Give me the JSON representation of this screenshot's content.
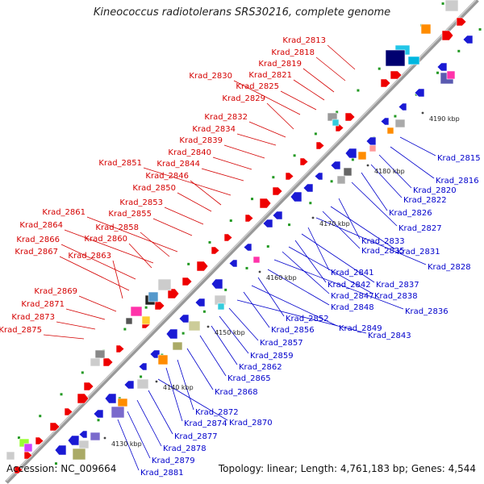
{
  "title": "Kineococcus radiotolerans SRS30216, complete genome",
  "footer": {
    "accession": "Accession: NC_009664",
    "summary": "Topology: linear; Length: 4,761,183 bp; Genes: 4,544"
  },
  "colors": {
    "forward_label": "#d40000",
    "reverse_label": "#0000cc",
    "forward_gene": "#ee0000",
    "reverse_gene": "#1a1ad4",
    "axis": "#999999",
    "tick_green": "#229922"
  },
  "axis_ticks": [
    {
      "label": "4130 kbp"
    },
    {
      "label": "4140 kbp"
    },
    {
      "label": "4150 kbp"
    },
    {
      "label": "4160 kbp"
    },
    {
      "label": "4170 kbp"
    },
    {
      "label": "4180 kbp"
    },
    {
      "label": "4190 kbp"
    }
  ],
  "forward_labels": [
    "Krad_2813",
    "Krad_2818",
    "Krad_2819",
    "Krad_2821",
    "Krad_2825",
    "Krad_2830",
    "Krad_2829",
    "Krad_2832",
    "Krad_2834",
    "Krad_2839",
    "Krad_2840",
    "Krad_2844",
    "Krad_2851",
    "Krad_2846",
    "Krad_2850",
    "Krad_2853",
    "Krad_2855",
    "Krad_2861",
    "Krad_2858",
    "Krad_2864",
    "Krad_2860",
    "Krad_2866",
    "Krad_2867",
    "Krad_2863",
    "Krad_2869",
    "Krad_2871",
    "Krad_2873",
    "Krad_2875"
  ],
  "reverse_labels": [
    "Krad_2815",
    "Krad_2816",
    "Krad_2820",
    "Krad_2822",
    "Krad_2826",
    "Krad_2827",
    "Krad_2833",
    "Krad_2831",
    "Krad_2835",
    "Krad_2828",
    "Krad_2841",
    "Krad_2837",
    "Krad_2842",
    "Krad_2838",
    "Krad_2847",
    "Krad_2836",
    "Krad_2848",
    "Krad_2852",
    "Krad_2849",
    "Krad_2856",
    "Krad_2843",
    "Krad_2857",
    "Krad_2859",
    "Krad_2862",
    "Krad_2865",
    "Krad_2868",
    "Krad_2872",
    "Krad_2874",
    "Krad_2870",
    "Krad_2877",
    "Krad_2878",
    "Krad_2879",
    "Krad_2881"
  ]
}
